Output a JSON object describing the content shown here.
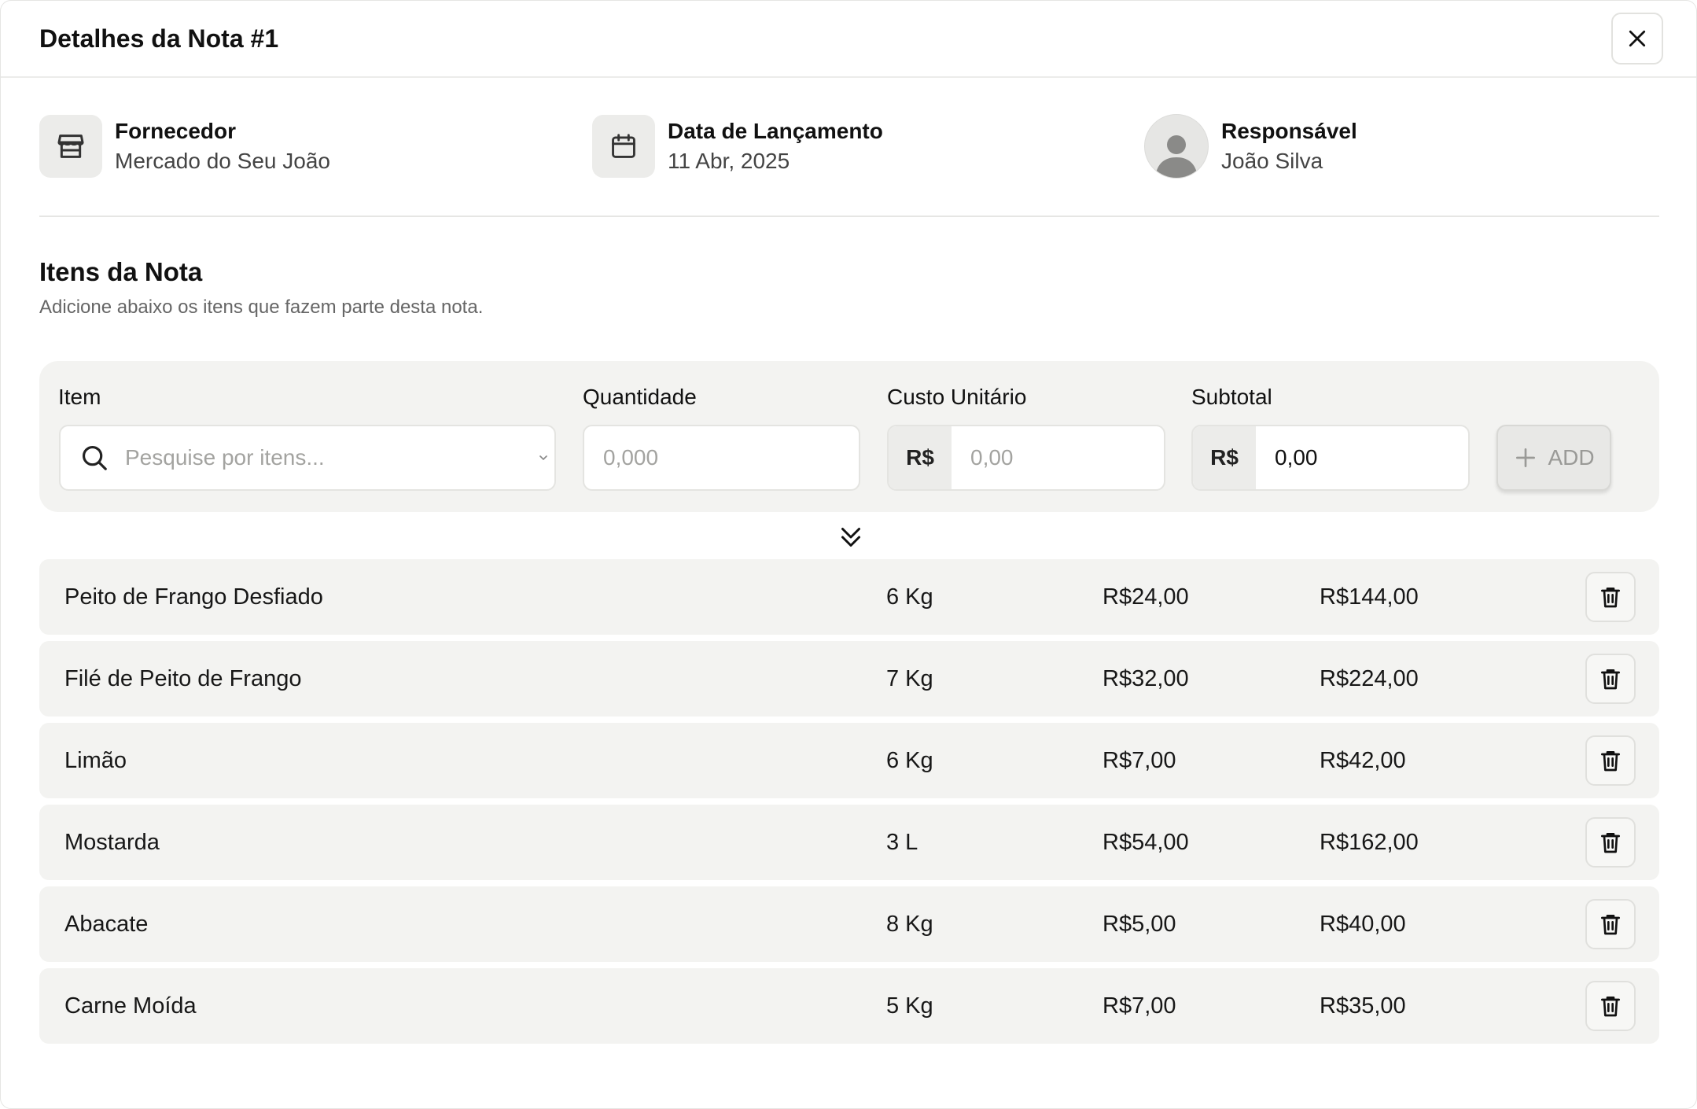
{
  "modal": {
    "title": "Detalhes da Nota #1"
  },
  "meta": {
    "supplier": {
      "label": "Fornecedor",
      "value": "Mercado do Seu João",
      "icon": "store-icon"
    },
    "date": {
      "label": "Data de Lançamento",
      "value": "11 Abr, 2025",
      "icon": "calendar-icon"
    },
    "owner": {
      "label": "Responsável",
      "value": "João Silva",
      "icon": "avatar-icon"
    }
  },
  "items_section": {
    "title": "Itens da Nota",
    "subtitle": "Adicione abaixo os itens que fazem parte desta nota."
  },
  "form": {
    "item_label": "Item",
    "item_placeholder": "Pesquise por itens...",
    "qty_label": "Quantidade",
    "qty_placeholder": "0,000",
    "cost_label": "Custo Unitário",
    "cost_prefix": "R$",
    "cost_placeholder": "0,00",
    "subtotal_label": "Subtotal",
    "subtotal_prefix": "R$",
    "subtotal_value": "0,00",
    "add_label": "ADD"
  },
  "rows": [
    {
      "name": "Peito de Frango Desfiado",
      "qty": "6 Kg",
      "cost": "R$24,00",
      "subtotal": "R$144,00"
    },
    {
      "name": "Filé de Peito de Frango",
      "qty": "7 Kg",
      "cost": "R$32,00",
      "subtotal": "R$224,00"
    },
    {
      "name": "Limão",
      "qty": "6 Kg",
      "cost": "R$7,00",
      "subtotal": "R$42,00"
    },
    {
      "name": "Mostarda",
      "qty": "3 L",
      "cost": "R$54,00",
      "subtotal": "R$162,00"
    },
    {
      "name": "Abacate",
      "qty": "8 Kg",
      "cost": "R$5,00",
      "subtotal": "R$40,00"
    },
    {
      "name": "Carne Moída",
      "qty": "5 Kg",
      "cost": "R$7,00",
      "subtotal": "R$35,00"
    }
  ]
}
